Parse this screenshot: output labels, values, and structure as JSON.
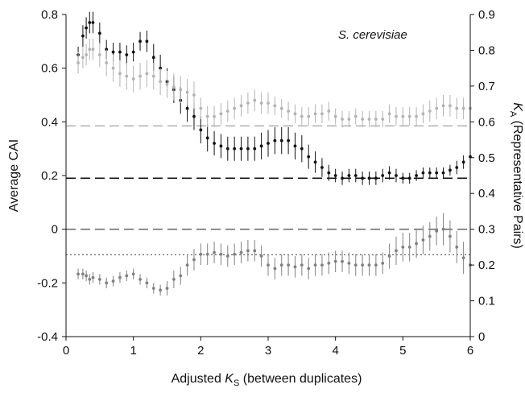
{
  "chart_data": {
    "type": "scatter",
    "annotation": "S. cerevisiae",
    "x_axis": {
      "label_prefix": "Adjusted ",
      "label_var": "K",
      "label_sub": "S",
      "label_suffix": " (between duplicates)",
      "range": [
        0,
        6
      ],
      "ticks": [
        "0",
        "1",
        "2",
        "3",
        "4",
        "5",
        "6"
      ]
    },
    "y_axis_left": {
      "label": "Average CAI",
      "range": [
        -0.4,
        0.8
      ],
      "ticks": [
        "-0.4",
        "-0.2",
        "0",
        "0.2",
        "0.4",
        "0.6",
        "0.8"
      ]
    },
    "y_axis_right": {
      "label_var": "K",
      "label_sub": "A",
      "label_suffix": " (Representative Pairs)",
      "range": [
        0,
        0.9
      ],
      "ticks": [
        "0",
        "0.1",
        "0.2",
        "0.3",
        "0.4",
        "0.5",
        "0.6",
        "0.7",
        "0.8",
        "0.9"
      ]
    },
    "grid": false,
    "legend": "none",
    "reference_lines": [
      {
        "axis": "left",
        "y": 0.385,
        "style": "dashed",
        "color": "#b5b5b5"
      },
      {
        "axis": "left",
        "y": 0.19,
        "style": "dashed",
        "color": "#111111"
      },
      {
        "axis": "left",
        "y": 0.0,
        "style": "dashed",
        "color": "#707070"
      },
      {
        "axis": "left",
        "y": -0.095,
        "style": "dotted",
        "color": "#555555"
      }
    ],
    "series": [
      {
        "color": "#111111",
        "axis": "left",
        "x": [
          0.18,
          0.25,
          0.3,
          0.35,
          0.4,
          0.5,
          0.6,
          0.7,
          0.8,
          0.9,
          1.0,
          1.1,
          1.2,
          1.3,
          1.4,
          1.5,
          1.6,
          1.7,
          1.8,
          1.9,
          2.0,
          2.1,
          2.2,
          2.3,
          2.4,
          2.5,
          2.6,
          2.7,
          2.8,
          2.9,
          3.0,
          3.1,
          3.2,
          3.3,
          3.4,
          3.5,
          3.6,
          3.7,
          3.8,
          3.9,
          4.0,
          4.1,
          4.2,
          4.3,
          4.4,
          4.5,
          4.6,
          4.7,
          4.8,
          4.9,
          5.0,
          5.1,
          5.2,
          5.3,
          5.4,
          5.5,
          5.6,
          5.7,
          5.8,
          5.9,
          6.0
        ],
        "values": [
          0.65,
          0.72,
          0.75,
          0.77,
          0.77,
          0.73,
          0.67,
          0.66,
          0.66,
          0.65,
          0.66,
          0.7,
          0.7,
          0.64,
          0.6,
          0.55,
          0.52,
          0.48,
          0.45,
          0.42,
          0.37,
          0.34,
          0.32,
          0.31,
          0.3,
          0.3,
          0.3,
          0.3,
          0.3,
          0.31,
          0.32,
          0.33,
          0.33,
          0.33,
          0.31,
          0.3,
          0.27,
          0.25,
          0.23,
          0.21,
          0.2,
          0.19,
          0.2,
          0.2,
          0.19,
          0.19,
          0.19,
          0.2,
          0.21,
          0.2,
          0.19,
          0.19,
          0.2,
          0.21,
          0.21,
          0.21,
          0.21,
          0.22,
          0.23,
          0.25,
          0.27
        ],
        "errors": [
          0.03,
          0.04,
          0.04,
          0.04,
          0.04,
          0.04,
          0.035,
          0.035,
          0.035,
          0.035,
          0.035,
          0.035,
          0.04,
          0.05,
          0.05,
          0.05,
          0.05,
          0.05,
          0.05,
          0.05,
          0.05,
          0.05,
          0.045,
          0.045,
          0.045,
          0.045,
          0.045,
          0.045,
          0.045,
          0.05,
          0.05,
          0.05,
          0.05,
          0.05,
          0.05,
          0.05,
          0.045,
          0.04,
          0.035,
          0.03,
          0.025,
          0.025,
          0.025,
          0.025,
          0.025,
          0.025,
          0.025,
          0.025,
          0.025,
          0.025,
          0.02,
          0.02,
          0.02,
          0.02,
          0.02,
          0.02,
          0.02,
          0.02,
          0.025,
          0.025,
          0.025
        ]
      },
      {
        "color": "#b3b3b3",
        "axis": "left",
        "x": [
          0.18,
          0.25,
          0.3,
          0.35,
          0.4,
          0.5,
          0.6,
          0.7,
          0.8,
          0.9,
          1.0,
          1.1,
          1.2,
          1.3,
          1.4,
          1.5,
          1.6,
          1.7,
          1.8,
          1.9,
          2.0,
          2.1,
          2.2,
          2.3,
          2.4,
          2.5,
          2.6,
          2.7,
          2.8,
          2.9,
          3.0,
          3.1,
          3.2,
          3.3,
          3.4,
          3.5,
          3.6,
          3.7,
          3.8,
          3.9,
          4.0,
          4.1,
          4.2,
          4.3,
          4.4,
          4.5,
          4.6,
          4.7,
          4.8,
          4.9,
          5.0,
          5.1,
          5.2,
          5.3,
          5.4,
          5.5,
          5.6,
          5.7,
          5.8,
          5.9,
          6.0
        ],
        "values": [
          0.62,
          0.64,
          0.65,
          0.67,
          0.67,
          0.65,
          0.62,
          0.6,
          0.58,
          0.57,
          0.56,
          0.57,
          0.58,
          0.57,
          0.55,
          0.54,
          0.53,
          0.52,
          0.51,
          0.5,
          0.45,
          0.42,
          0.42,
          0.43,
          0.44,
          0.45,
          0.46,
          0.47,
          0.48,
          0.47,
          0.47,
          0.46,
          0.45,
          0.44,
          0.43,
          0.42,
          0.42,
          0.43,
          0.43,
          0.44,
          0.42,
          0.41,
          0.41,
          0.42,
          0.41,
          0.41,
          0.41,
          0.41,
          0.43,
          0.42,
          0.42,
          0.42,
          0.42,
          0.43,
          0.44,
          0.45,
          0.46,
          0.46,
          0.45,
          0.45,
          0.45
        ],
        "errors": [
          0.04,
          0.04,
          0.04,
          0.04,
          0.04,
          0.045,
          0.05,
          0.05,
          0.05,
          0.05,
          0.05,
          0.05,
          0.05,
          0.05,
          0.05,
          0.05,
          0.05,
          0.05,
          0.05,
          0.05,
          0.04,
          0.04,
          0.04,
          0.04,
          0.04,
          0.04,
          0.04,
          0.04,
          0.04,
          0.04,
          0.04,
          0.035,
          0.035,
          0.035,
          0.035,
          0.035,
          0.035,
          0.035,
          0.035,
          0.035,
          0.03,
          0.03,
          0.03,
          0.03,
          0.03,
          0.03,
          0.03,
          0.03,
          0.035,
          0.035,
          0.035,
          0.035,
          0.035,
          0.035,
          0.04,
          0.04,
          0.04,
          0.04,
          0.04,
          0.04,
          0.04
        ]
      },
      {
        "color": "#808080",
        "axis": "right",
        "x": [
          0.18,
          0.25,
          0.3,
          0.35,
          0.4,
          0.5,
          0.6,
          0.7,
          0.8,
          0.9,
          1.0,
          1.1,
          1.2,
          1.3,
          1.4,
          1.5,
          1.6,
          1.7,
          1.8,
          1.9,
          2.0,
          2.1,
          2.2,
          2.3,
          2.4,
          2.5,
          2.6,
          2.7,
          2.8,
          2.9,
          3.0,
          3.1,
          3.2,
          3.3,
          3.4,
          3.5,
          3.6,
          3.7,
          3.8,
          3.9,
          4.0,
          4.1,
          4.2,
          4.3,
          4.4,
          4.5,
          4.6,
          4.7,
          4.8,
          4.9,
          5.0,
          5.1,
          5.2,
          5.3,
          5.4,
          5.5,
          5.6,
          5.7,
          5.8,
          5.9,
          6.0
        ],
        "values": [
          0.175,
          0.175,
          0.17,
          0.16,
          0.165,
          0.16,
          0.15,
          0.155,
          0.165,
          0.17,
          0.175,
          0.16,
          0.15,
          0.135,
          0.13,
          0.135,
          0.16,
          0.17,
          0.2,
          0.215,
          0.23,
          0.23,
          0.235,
          0.23,
          0.225,
          0.23,
          0.235,
          0.24,
          0.24,
          0.225,
          0.2,
          0.19,
          0.2,
          0.2,
          0.195,
          0.2,
          0.19,
          0.2,
          0.2,
          0.205,
          0.21,
          0.21,
          0.205,
          0.2,
          0.2,
          0.2,
          0.2,
          0.205,
          0.225,
          0.24,
          0.25,
          0.25,
          0.26,
          0.27,
          0.28,
          0.295,
          0.3,
          0.28,
          0.25,
          0.22,
          0.2
        ],
        "errors": [
          0.015,
          0.015,
          0.015,
          0.015,
          0.015,
          0.015,
          0.015,
          0.015,
          0.015,
          0.015,
          0.015,
          0.015,
          0.015,
          0.015,
          0.015,
          0.02,
          0.025,
          0.025,
          0.03,
          0.03,
          0.03,
          0.03,
          0.03,
          0.03,
          0.03,
          0.03,
          0.03,
          0.03,
          0.03,
          0.03,
          0.03,
          0.03,
          0.03,
          0.03,
          0.03,
          0.03,
          0.03,
          0.03,
          0.03,
          0.03,
          0.03,
          0.03,
          0.03,
          0.03,
          0.03,
          0.03,
          0.03,
          0.03,
          0.035,
          0.04,
          0.04,
          0.04,
          0.04,
          0.04,
          0.04,
          0.04,
          0.045,
          0.045,
          0.045,
          0.045,
          0.045
        ]
      }
    ]
  }
}
